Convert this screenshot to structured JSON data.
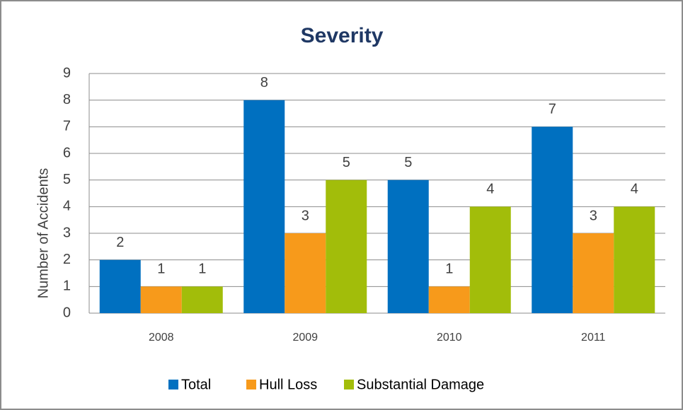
{
  "chart_data": {
    "type": "bar",
    "title": "Severity",
    "y_label": "Number of Accidents",
    "categories": [
      "2008",
      "2009",
      "2010",
      "2011"
    ],
    "series": [
      {
        "name": "Total",
        "color": "#0070c0",
        "values": [
          2,
          8,
          5,
          7
        ]
      },
      {
        "name": "Hull Loss",
        "color": "#f79a1b",
        "values": [
          1,
          3,
          1,
          3
        ]
      },
      {
        "name": "Substantial Damage",
        "color": "#a2bd0a",
        "values": [
          1,
          5,
          4,
          4
        ]
      }
    ],
    "ylim": [
      0,
      9
    ],
    "yticks": [
      0,
      1,
      2,
      3,
      4,
      5,
      6,
      7,
      8,
      9
    ],
    "grid": true,
    "legend": "bottom"
  }
}
